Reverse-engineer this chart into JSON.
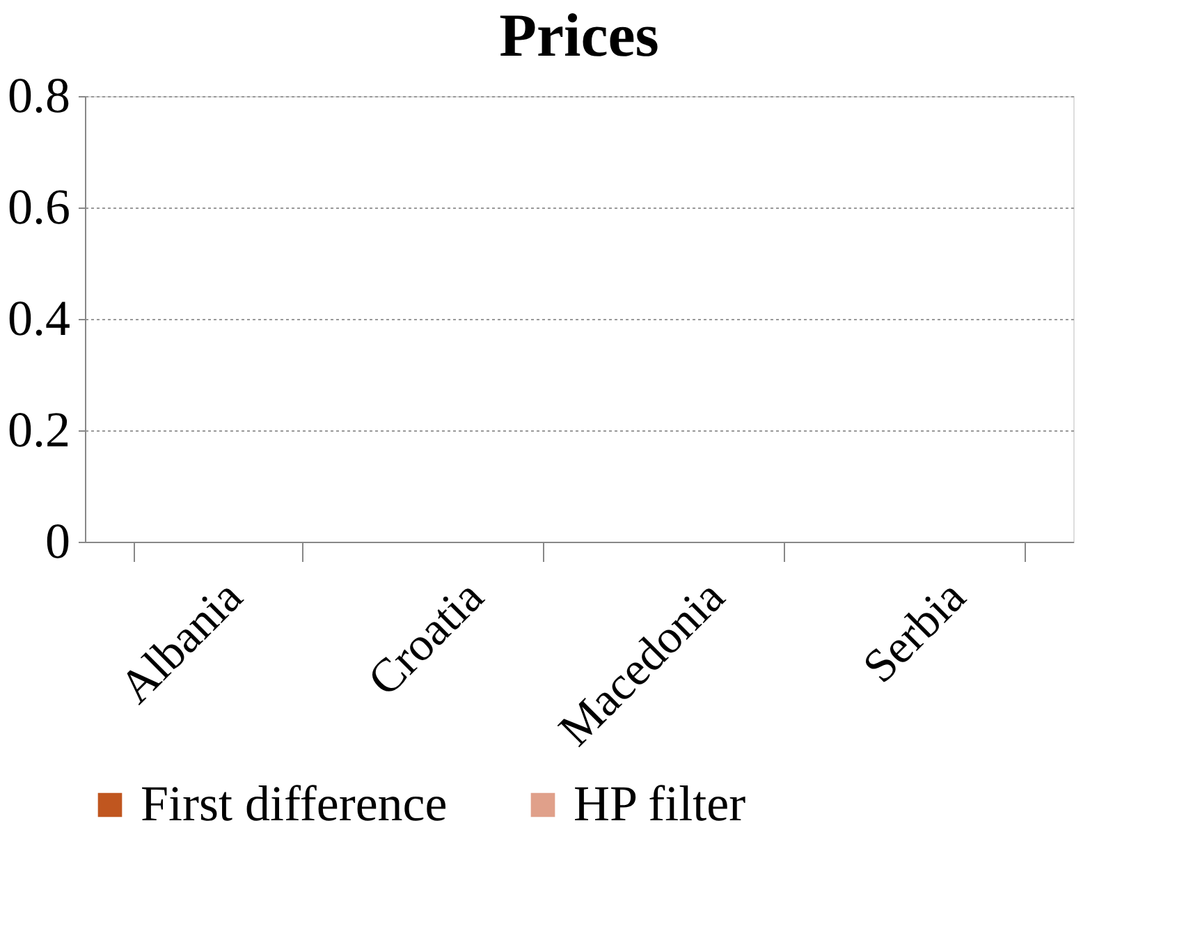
{
  "chart_data": {
    "type": "bar",
    "title": "Prices",
    "categories": [
      "Albania",
      "Croatia",
      "Macedonia",
      "Serbia"
    ],
    "series": [
      {
        "name": "First difference",
        "color": "#c0561f",
        "values": [
          0,
          0,
          0,
          0
        ]
      },
      {
        "name": "HP filter",
        "color": "#e0a08a",
        "values": [
          0,
          0,
          0,
          0
        ]
      }
    ],
    "ylim": [
      0,
      0.8
    ],
    "yticks": [
      0,
      0.2,
      0.4,
      0.6,
      0.8
    ],
    "grid": "y",
    "legend": "bottom"
  }
}
